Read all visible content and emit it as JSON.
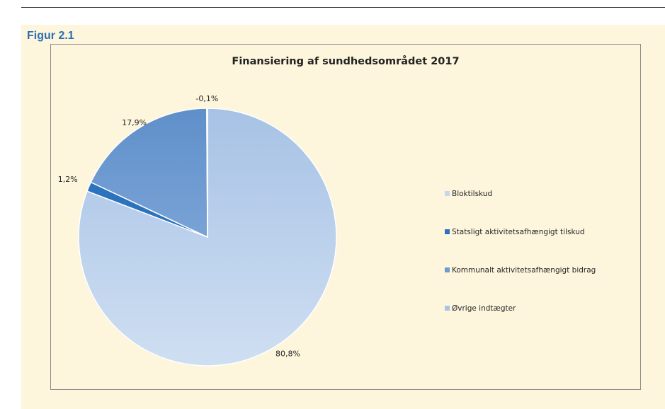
{
  "figure_label": "Figur 2.1",
  "chart_data": {
    "type": "pie",
    "title": "Finansiering af sundhedsområdet 2017",
    "categories": [
      "Bloktilskud",
      "Statsligt aktivitetsafhængigt tilskud",
      "Kommunalt aktivitetsafhængigt bidrag",
      "Øvrige indtægter"
    ],
    "values": [
      80.8,
      1.2,
      17.9,
      -0.1
    ],
    "value_labels": [
      "80,8%",
      "1,2%",
      "17,9%",
      "-0,1%"
    ],
    "colors": [
      "#c5d7ee",
      "#2d72bd",
      "#6d9bd0",
      "#a9c3e5"
    ],
    "legend_position": "right"
  }
}
